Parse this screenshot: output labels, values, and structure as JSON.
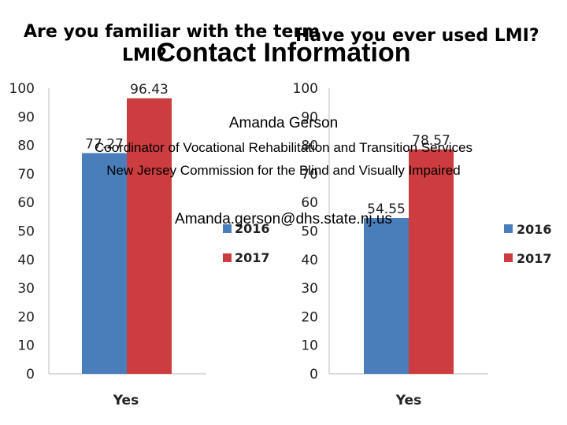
{
  "slide": {
    "heading": "Contact Information",
    "name": "Amanda Gerson",
    "role": "Coordinator of Vocational Rehabilitation and Transition Services",
    "organization": "New Jersey Commission for the Blind and Visually Impaired",
    "email": "Amanda.gerson@dhs.state.nj.us"
  },
  "colors": {
    "series_2016": "#4a7ebb",
    "series_2017": "#cd3d3f"
  },
  "chart_data": [
    {
      "type": "bar",
      "title": "Are you familiar with the term LMI?",
      "categories": [
        "Yes"
      ],
      "series": [
        {
          "name": "2016",
          "values": [
            77.27
          ]
        },
        {
          "name": "2017",
          "values": [
            96.43
          ]
        }
      ],
      "data_labels": [
        "77.27",
        "96.43"
      ],
      "yticks": [
        "0",
        "10",
        "20",
        "30",
        "40",
        "50",
        "60",
        "70",
        "80",
        "90",
        "100"
      ],
      "ylim": [
        0,
        100
      ],
      "legend": [
        "2016",
        "2017"
      ]
    },
    {
      "type": "bar",
      "title": "Have you ever used LMI?",
      "categories": [
        "Yes"
      ],
      "series": [
        {
          "name": "2016",
          "values": [
            54.55
          ]
        },
        {
          "name": "2017",
          "values": [
            78.57
          ]
        }
      ],
      "data_labels": [
        "54.55",
        "78.57"
      ],
      "yticks": [
        "0",
        "10",
        "20",
        "30",
        "40",
        "50",
        "60",
        "70",
        "80",
        "90",
        "100"
      ],
      "ylim": [
        0,
        100
      ],
      "legend": [
        "2016",
        "2017"
      ]
    }
  ]
}
